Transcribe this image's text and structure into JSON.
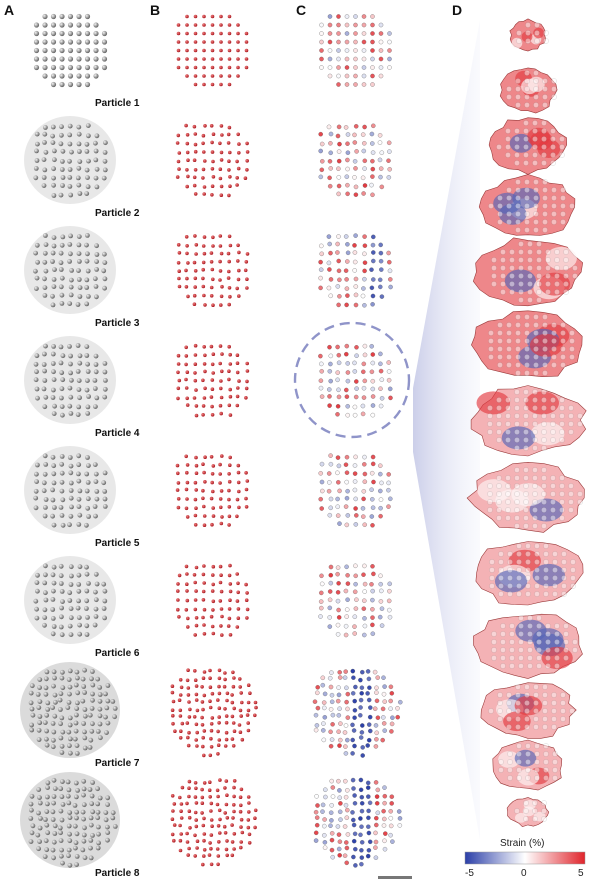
{
  "panels": [
    "A",
    "B",
    "C",
    "D"
  ],
  "particles": [
    "Particle 1",
    "Particle 2",
    "Particle 3",
    "Particle 4",
    "Particle 5",
    "Particle 6",
    "Particle 7",
    "Particle 8"
  ],
  "colorbar": {
    "title": "Strain (%)",
    "ticks": [
      "-5",
      "0",
      "5"
    ],
    "colors": {
      "negative": "#2b3fa8",
      "zero": "#ffffff",
      "positive": "#e0242b"
    }
  },
  "highlight_row": 4
}
